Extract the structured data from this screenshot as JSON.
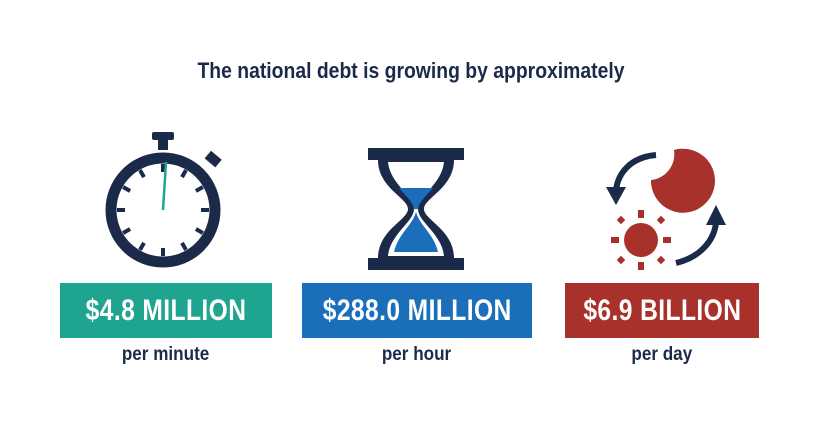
{
  "title": "The national debt is growing by approximately",
  "colors": {
    "navy": "#1c2a4a",
    "green": "#1fa58f",
    "blue": "#1b6fba",
    "red": "#a8322b"
  },
  "stats": [
    {
      "icon": "stopwatch-icon",
      "amount": "$4.8 MILLION",
      "period": "per minute",
      "color": "#1fa58f"
    },
    {
      "icon": "hourglass-icon",
      "amount": "$288.0 MILLION",
      "period": "per hour",
      "color": "#1b6fba"
    },
    {
      "icon": "day-night-cycle-icon",
      "amount": "$6.9 BILLION",
      "period": "per day",
      "color": "#a8322b"
    }
  ]
}
